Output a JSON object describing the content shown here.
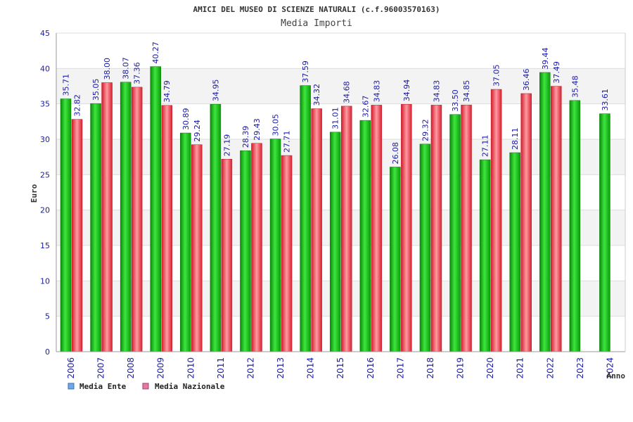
{
  "chart_data": {
    "type": "bar",
    "title": "AMICI DEL MUSEO DI SCIENZE NATURALI (c.f.96003570163)",
    "subtitle": "Media Importi",
    "xlabel": "Anno",
    "ylabel": "Euro",
    "ylim": [
      0,
      45
    ],
    "yticks": [
      0,
      5,
      10,
      15,
      20,
      25,
      30,
      35,
      40,
      45
    ],
    "grid": true,
    "legend_position": "bottom-left",
    "categories": [
      "2006",
      "2007",
      "2008",
      "2009",
      "2010",
      "2011",
      "2012",
      "2013",
      "2014",
      "2015",
      "2016",
      "2017",
      "2018",
      "2019",
      "2020",
      "2021",
      "2022",
      "2023",
      "2024"
    ],
    "series": [
      {
        "name": "Media Ente",
        "color": "#1cb51c",
        "legend_color": "#6fa8e8",
        "values": [
          35.71,
          35.05,
          38.07,
          40.27,
          30.89,
          34.95,
          28.39,
          30.05,
          37.59,
          31.01,
          32.67,
          26.08,
          29.32,
          33.5,
          27.11,
          28.11,
          39.44,
          35.48,
          33.61
        ],
        "labels": [
          "35.71",
          "35.05",
          "38.07",
          "40.27",
          "30.89",
          "34.95",
          "28.39",
          "30.05",
          "37.59",
          "31.01",
          "32.67",
          "26.08",
          "29.32",
          "33.50",
          "27.11",
          "28.11",
          "39.44",
          "35.48",
          "33.61"
        ]
      },
      {
        "name": "Media Nazionale",
        "color": "#e8434e",
        "legend_color": "#e27aa5",
        "values": [
          32.82,
          38.0,
          37.36,
          34.79,
          29.24,
          27.19,
          29.43,
          27.71,
          34.32,
          34.68,
          34.83,
          34.94,
          34.83,
          34.85,
          37.05,
          36.46,
          37.49,
          null,
          null
        ],
        "labels": [
          "32.82",
          "38.00",
          "37.36",
          "34.79",
          "29.24",
          "27.19",
          "29.43",
          "27.71",
          "34.32",
          "34.68",
          "34.83",
          "34.94",
          "34.83",
          "34.85",
          "37.05",
          "36.46",
          "37.49",
          null,
          null
        ]
      }
    ]
  }
}
